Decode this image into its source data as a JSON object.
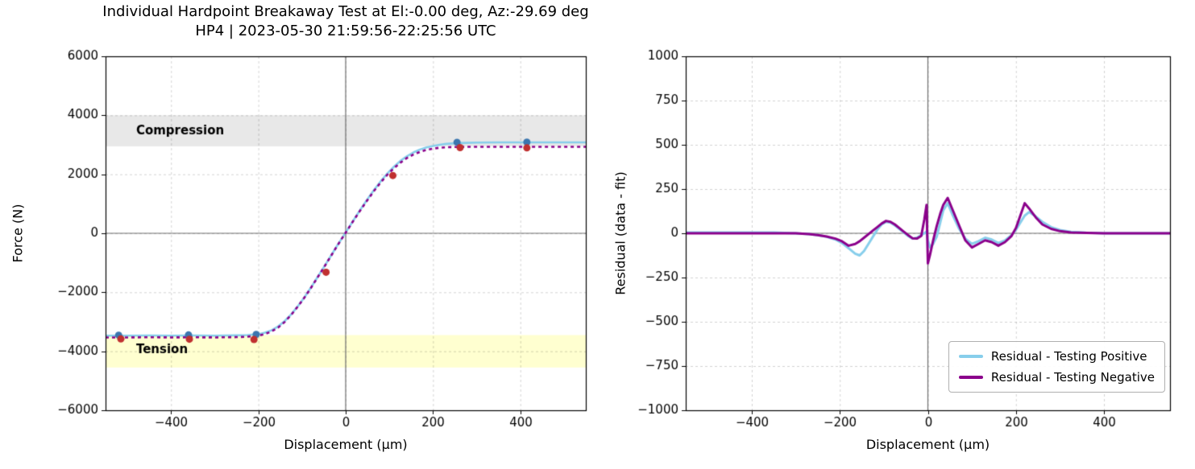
{
  "figure": {
    "title_line1": "Individual Hardpoint Breakaway Test at El:-0.00 deg, Az:-29.69 deg",
    "title_line2": "HP4 | 2023-05-30 21:59:56-22:25:56 UTC"
  },
  "chart_data": [
    {
      "id": "force-vs-displacement",
      "type": "line",
      "xlabel": "Displacement (µm)",
      "ylabel": "Force (N)",
      "xlim": [
        -550,
        550
      ],
      "ylim": [
        -6000,
        6000
      ],
      "xticks": [
        -400,
        -200,
        0,
        200,
        400
      ],
      "yticks": [
        -6000,
        -4000,
        -2000,
        0,
        2000,
        4000,
        6000
      ],
      "grid": true,
      "zero_lines": true,
      "axes_rect": [
        131,
        70,
        596,
        440
      ],
      "bands": [
        {
          "label": "Compression",
          "y0": 2950,
          "y1": 4000,
          "color": "#e8e8e8",
          "label_x": -480,
          "label_y": 3450
        },
        {
          "label": "Tension",
          "y0": -4550,
          "y1": -3450,
          "color": "#ffffd0",
          "label_x": -480,
          "label_y": -3950
        }
      ],
      "series": [
        {
          "name": "Testing Positive",
          "color": "#87CEEB",
          "width": 2.6,
          "dash": [],
          "x": [
            -550,
            -500,
            -450,
            -400,
            -350,
            -300,
            -275,
            -250,
            -225,
            -200,
            -185,
            -170,
            -155,
            -140,
            -125,
            -110,
            -95,
            -80,
            -65,
            -50,
            -35,
            -20,
            -10,
            0,
            10,
            20,
            35,
            50,
            65,
            80,
            95,
            110,
            125,
            140,
            155,
            170,
            185,
            200,
            215,
            230,
            250,
            275,
            300,
            350,
            400,
            450,
            500,
            550
          ],
          "y": [
            -3470,
            -3470,
            -3465,
            -3470,
            -3465,
            -3470,
            -3465,
            -3460,
            -3450,
            -3420,
            -3370,
            -3290,
            -3160,
            -2980,
            -2750,
            -2480,
            -2180,
            -1850,
            -1500,
            -1150,
            -790,
            -430,
            -200,
            30,
            260,
            490,
            830,
            1160,
            1470,
            1760,
            2020,
            2250,
            2450,
            2610,
            2740,
            2840,
            2910,
            2960,
            3000,
            3030,
            3050,
            3065,
            3075,
            3080,
            3080,
            3080,
            3080,
            3080
          ]
        },
        {
          "name": "Testing Negative",
          "color": "#8B008B",
          "width": 2.6,
          "dash": [
            4,
            4
          ],
          "x": [
            -550,
            -500,
            -450,
            -400,
            -350,
            -300,
            -275,
            -250,
            -225,
            -200,
            -185,
            -170,
            -155,
            -140,
            -125,
            -110,
            -95,
            -80,
            -65,
            -50,
            -35,
            -20,
            -10,
            0,
            10,
            20,
            35,
            50,
            65,
            80,
            95,
            110,
            125,
            140,
            155,
            170,
            185,
            200,
            215,
            230,
            250,
            275,
            300,
            350,
            400,
            450,
            500,
            550
          ],
          "y": [
            -3530,
            -3530,
            -3525,
            -3530,
            -3525,
            -3530,
            -3525,
            -3520,
            -3505,
            -3470,
            -3415,
            -3330,
            -3200,
            -3010,
            -2770,
            -2490,
            -2190,
            -1860,
            -1510,
            -1160,
            -800,
            -440,
            -210,
            20,
            250,
            480,
            810,
            1130,
            1440,
            1720,
            1980,
            2200,
            2390,
            2550,
            2670,
            2760,
            2830,
            2870,
            2900,
            2915,
            2925,
            2930,
            2930,
            2930,
            2930,
            2930,
            2930,
            2930
          ]
        }
      ],
      "scatter": [
        {
          "name": "positive-measured-points",
          "color": "#3b76af",
          "size": 4.5,
          "x": [
            -520,
            -360,
            -205,
            255,
            415
          ],
          "y": [
            -3455,
            -3445,
            -3430,
            3085,
            3090
          ]
        },
        {
          "name": "negative-measured-points",
          "color": "#c03030",
          "size": 4.5,
          "x": [
            -515,
            -358,
            -210,
            -45,
            108,
            262,
            415
          ],
          "y": [
            -3580,
            -3590,
            -3600,
            -1320,
            1960,
            2905,
            2895
          ]
        }
      ]
    },
    {
      "id": "residuals",
      "type": "line",
      "xlabel": "Displacement (µm)",
      "ylabel": "Residual (data - fit)",
      "xlim": [
        -550,
        550
      ],
      "ylim": [
        -1000,
        1000
      ],
      "xticks": [
        -400,
        -200,
        0,
        200,
        400
      ],
      "yticks": [
        -1000,
        -750,
        -500,
        -250,
        0,
        250,
        500,
        750,
        1000
      ],
      "grid": true,
      "zero_lines": true,
      "axes_rect": [
        111,
        70,
        601,
        440
      ],
      "legend": {
        "position": "lower right",
        "entries": [
          {
            "label": "Residual - Testing Positive"
          },
          {
            "label": "Residual - Testing Negative"
          }
        ]
      },
      "series": [
        {
          "name": "Residual - Testing Positive",
          "color": "#87CEEB",
          "width": 3,
          "dash": [],
          "x": [
            -550,
            -500,
            -450,
            -400,
            -350,
            -300,
            -270,
            -250,
            -230,
            -210,
            -195,
            -180,
            -165,
            -155,
            -145,
            -135,
            -125,
            -115,
            -105,
            -95,
            -85,
            -75,
            -65,
            -55,
            -45,
            -35,
            -25,
            -15,
            -8,
            -3,
            0,
            5,
            12,
            20,
            28,
            35,
            45,
            55,
            70,
            85,
            100,
            115,
            130,
            145,
            160,
            175,
            190,
            200,
            210,
            220,
            230,
            245,
            260,
            280,
            300,
            325,
            360,
            400,
            450,
            500,
            550
          ],
          "y": [
            5,
            5,
            5,
            5,
            5,
            0,
            -5,
            -10,
            -20,
            -35,
            -55,
            -85,
            -115,
            -125,
            -100,
            -60,
            -20,
            20,
            50,
            65,
            60,
            45,
            25,
            5,
            -15,
            -30,
            -25,
            -10,
            0,
            10,
            -40,
            -80,
            -60,
            -20,
            60,
            130,
            170,
            110,
            30,
            -30,
            -60,
            -45,
            -25,
            -35,
            -55,
            -40,
            -10,
            20,
            60,
            100,
            120,
            95,
            65,
            35,
            18,
            8,
            3,
            0,
            0,
            0,
            0
          ]
        },
        {
          "name": "Residual - Testing Negative",
          "color": "#8B008B",
          "width": 3,
          "dash": [],
          "x": [
            -550,
            -500,
            -450,
            -400,
            -350,
            -300,
            -270,
            -250,
            -230,
            -210,
            -195,
            -180,
            -165,
            -155,
            -145,
            -135,
            -125,
            -115,
            -105,
            -95,
            -85,
            -75,
            -65,
            -55,
            -45,
            -35,
            -25,
            -15,
            -8,
            -3,
            0,
            5,
            12,
            20,
            28,
            35,
            45,
            55,
            70,
            85,
            100,
            115,
            130,
            145,
            160,
            175,
            190,
            200,
            210,
            220,
            230,
            245,
            260,
            280,
            300,
            325,
            360,
            400,
            450,
            500,
            550
          ],
          "y": [
            0,
            0,
            0,
            0,
            0,
            0,
            -5,
            -10,
            -18,
            -30,
            -45,
            -70,
            -60,
            -45,
            -25,
            -5,
            15,
            35,
            55,
            70,
            65,
            50,
            30,
            10,
            -10,
            -28,
            -30,
            -15,
            80,
            160,
            -170,
            -120,
            -40,
            40,
            110,
            160,
            200,
            140,
            50,
            -40,
            -80,
            -60,
            -40,
            -50,
            -70,
            -50,
            -15,
            30,
            100,
            170,
            140,
            90,
            50,
            25,
            12,
            5,
            2,
            0,
            0,
            0,
            0
          ]
        }
      ]
    }
  ]
}
